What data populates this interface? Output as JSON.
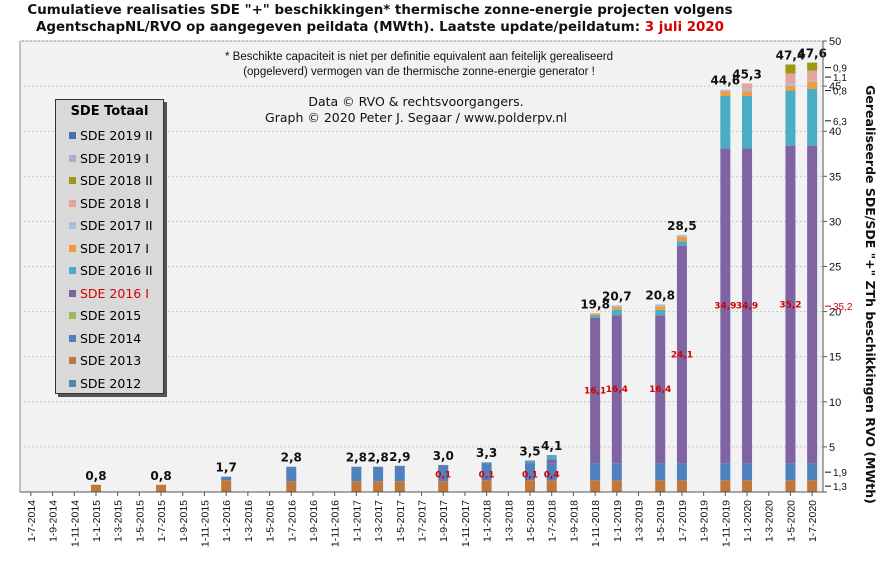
{
  "title_line1": "Cumulatieve realisaties SDE \"+\" beschikkingen* thermische zonne-energie projecten volgens",
  "title_line2a": "AgentschapNL/RVO  op aangegeven peildata (MWth).  Laatste update/peildatum:",
  "title_line2b": "3 juli 2020",
  "note_line1": "* Beschikte capaciteit is niet per definitie equivalent aan feitelijk gerealiseerd",
  "note_line2": "(opgeleverd) vermogen van de thermische zonne-energie generator !",
  "credit_line1": "Data © RVO & rechtsvoorgangers.",
  "credit_line2": "Graph  © 2020  Peter J. Segaar / www.polderpv.nl",
  "legend": {
    "title": "SDE Totaal",
    "items": [
      {
        "label": "SDE 2019 II",
        "color": "#4a6fa8",
        "highlight": false
      },
      {
        "label": "SDE 2019 I",
        "color": "#b9a9cf",
        "highlight": false
      },
      {
        "label": "SDE 2018 II",
        "color": "#9a9a14",
        "highlight": false
      },
      {
        "label": "SDE 2018 I",
        "color": "#e6a39e",
        "highlight": false
      },
      {
        "label": "SDE 2017 II",
        "color": "#a9bde0",
        "highlight": false
      },
      {
        "label": "SDE 2017 I",
        "color": "#f39a3a",
        "highlight": false
      },
      {
        "label": "SDE 2016 II",
        "color": "#4bacc6",
        "highlight": false
      },
      {
        "label": "SDE 2016 I",
        "color": "#8064a2",
        "highlight": true
      },
      {
        "label": "SDE 2015",
        "color": "#9bbb59",
        "highlight": false
      },
      {
        "label": "SDE 2014",
        "color": "#4f81bd",
        "highlight": false
      },
      {
        "label": "SDE 2013",
        "color": "#c0783a",
        "highlight": false
      },
      {
        "label": "SDE 2012",
        "color": "#4c8aa8",
        "highlight": false
      }
    ]
  },
  "chart_data": {
    "type": "bar",
    "stacked": true,
    "categories": [
      "1-7-2014",
      "1-9-2014",
      "1-11-2014",
      "1-1-2015",
      "1-3-2015",
      "1-5-2015",
      "1-7-2015",
      "1-9-2015",
      "1-11-2015",
      "1-1-2016",
      "1-3-2016",
      "1-5-2016",
      "1-7-2016",
      "1-9-2016",
      "1-11-2016",
      "1-1-2017",
      "1-3-2017",
      "1-5-2017",
      "1-7-2017",
      "1-9-2017",
      "1-11-2017",
      "1-1-2018",
      "1-3-2018",
      "1-5-2018",
      "1-7-2018",
      "1-9-2018",
      "1-11-2018",
      "1-1-2019",
      "1-3-2019",
      "1-5-2019",
      "1-7-2019",
      "1-9-2019",
      "1-11-2019",
      "1-1-2020",
      "1-3-2020",
      "1-5-2020",
      "1-7-2020"
    ],
    "series_order": [
      "SDE 2012",
      "SDE 2013",
      "SDE 2014",
      "SDE 2015",
      "SDE 2016 I",
      "SDE 2016 II",
      "SDE 2017 I",
      "SDE 2017 II",
      "SDE 2018 I",
      "SDE 2018 II",
      "SDE 2019 I",
      "SDE 2019 II"
    ],
    "bars": [
      {
        "cat_index": 3,
        "total": "0,8",
        "segments": {
          "SDE 2013": 0.8
        }
      },
      {
        "cat_index": 6,
        "total": "0,8",
        "segments": {
          "SDE 2013": 0.8
        }
      },
      {
        "cat_index": 9,
        "total": "1,7",
        "segments": {
          "SDE 2013": 1.3,
          "SDE 2014": 0.4
        }
      },
      {
        "cat_index": 12,
        "total": "2,8",
        "segments": {
          "SDE 2013": 1.2,
          "SDE 2014": 1.6
        }
      },
      {
        "cat_index": 15,
        "total": "2,8",
        "segments": {
          "SDE 2013": 1.2,
          "SDE 2014": 1.6
        }
      },
      {
        "cat_index": 16,
        "total": "2,8",
        "segments": {
          "SDE 2013": 1.2,
          "SDE 2014": 1.6
        }
      },
      {
        "cat_index": 17,
        "total": "2,9",
        "segments": {
          "SDE 2013": 1.2,
          "SDE 2014": 1.7
        }
      },
      {
        "cat_index": 19,
        "total": "3,0",
        "s16i_label": "0,1",
        "segments": {
          "SDE 2013": 1.2,
          "SDE 2014": 1.7,
          "SDE 2016 I": 0.1
        }
      },
      {
        "cat_index": 21,
        "total": "3,3",
        "s16i_label": "0,1",
        "segments": {
          "SDE 2013": 1.3,
          "SDE 2014": 1.8,
          "SDE 2016 I": 0.1,
          "SDE 2016 II": 0.1
        }
      },
      {
        "cat_index": 23,
        "total": "3,5",
        "s16i_label": "0,1",
        "segments": {
          "SDE 2013": 1.3,
          "SDE 2014": 1.9,
          "SDE 2016 I": 0.1,
          "SDE 2016 II": 0.2
        }
      },
      {
        "cat_index": 24,
        "total": "4,1",
        "s16i_label": "0,4",
        "segments": {
          "SDE 2013": 1.3,
          "SDE 2014": 1.9,
          "SDE 2016 I": 0.4,
          "SDE 2016 II": 0.5
        }
      },
      {
        "cat_index": 26,
        "total": "19,8",
        "s16i_label": "16,1",
        "segments": {
          "SDE 2013": 1.3,
          "SDE 2014": 1.9,
          "SDE 2016 I": 16.1,
          "SDE 2016 II": 0.3,
          "SDE 2017 I": 0.2
        }
      },
      {
        "cat_index": 27,
        "total": "20,7",
        "s16i_label": "16,4",
        "segments": {
          "SDE 2013": 1.3,
          "SDE 2014": 1.9,
          "SDE 2016 I": 16.4,
          "SDE 2016 II": 0.6,
          "SDE 2017 I": 0.3,
          "SDE 2017 II": 0.2
        }
      },
      {
        "cat_index": 29,
        "total": "20,8",
        "s16i_label": "16,4",
        "segments": {
          "SDE 2013": 1.3,
          "SDE 2014": 1.9,
          "SDE 2016 I": 16.4,
          "SDE 2016 II": 0.6,
          "SDE 2017 I": 0.4,
          "SDE 2017 II": 0.2
        }
      },
      {
        "cat_index": 30,
        "total": "28,5",
        "s16i_label": "24,1",
        "segments": {
          "SDE 2013": 1.3,
          "SDE 2014": 1.9,
          "SDE 2016 I": 24.1,
          "SDE 2016 II": 0.5,
          "SDE 2017 I": 0.5,
          "SDE 2017 II": 0.2
        }
      },
      {
        "cat_index": 32,
        "total": "44,6",
        "s16i_label": "34,9",
        "segments": {
          "SDE 2013": 1.3,
          "SDE 2014": 1.9,
          "SDE 2016 I": 34.9,
          "SDE 2016 II": 5.8,
          "SDE 2017 I": 0.5,
          "SDE 2017 II": 0.2
        }
      },
      {
        "cat_index": 33,
        "total": "45,3",
        "s16i_label": "34,9",
        "segments": {
          "SDE 2013": 1.3,
          "SDE 2014": 1.9,
          "SDE 2016 I": 34.9,
          "SDE 2016 II": 5.8,
          "SDE 2017 I": 0.5,
          "SDE 2017 II": 0.3,
          "SDE 2018 I": 0.6
        }
      },
      {
        "cat_index": 35,
        "total": "47,4",
        "s16i_label": "35,2",
        "segments": {
          "SDE 2013": 1.3,
          "SDE 2014": 1.9,
          "SDE 2016 I": 35.2,
          "SDE 2016 II": 6.1,
          "SDE 2017 I": 0.5,
          "SDE 2017 II": 0.3,
          "SDE 2018 I": 1.1,
          "SDE 2018 II": 1.0
        }
      },
      {
        "cat_index": 36,
        "total": "47,6",
        "s16i_label": "",
        "segments": {
          "SDE 2013": 1.3,
          "SDE 2014": 1.9,
          "SDE 2016 I": 35.2,
          "SDE 2016 II": 6.3,
          "SDE 2017 I": 0.8,
          "SDE 2017 II": 0.1,
          "SDE 2018 I": 1.1,
          "SDE 2018 II": 0.9
        }
      }
    ],
    "ylim": [
      0,
      50
    ],
    "yticks": [
      0,
      5,
      10,
      15,
      20,
      25,
      30,
      35,
      40,
      45,
      50
    ],
    "ylabel": "Gerealiseerde SDE/SDE \"+\" ZTh beschikkingen RVO (MWth)",
    "grid": true,
    "right_annotations": [
      {
        "label": "0,9",
        "value": 47.05
      },
      {
        "label": "1,1",
        "value": 46.0
      },
      {
        "label": "0,8",
        "value": 44.5
      },
      {
        "label": "6,3",
        "value": 41.15
      },
      {
        "label": "35,2",
        "value": 20.6,
        "highlight": true
      },
      {
        "label": "1,9",
        "value": 2.2
      },
      {
        "label": "1,3",
        "value": 0.65
      }
    ]
  }
}
